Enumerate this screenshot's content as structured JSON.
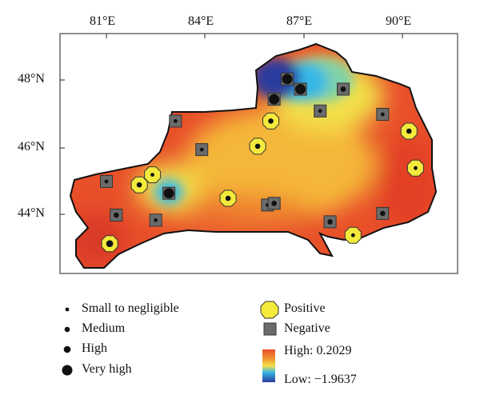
{
  "axes": {
    "longitude_labels": [
      "81°E",
      "84°E",
      "87°E",
      "90°E"
    ],
    "latitude_labels": [
      "48°N",
      "46°N",
      "44°N"
    ]
  },
  "legend": {
    "magnitude": [
      "Small to negligible",
      "Medium",
      "High",
      "Very high"
    ],
    "sign": [
      "Positive",
      "Negative"
    ],
    "scale_high": "High: 0.2029",
    "scale_low": "Low: −1.9637"
  },
  "colors": {
    "high": "#e8502a",
    "mid": "#f3e04a",
    "low_cyan": "#37b8e6",
    "lowest": "#2a3a9e",
    "positive_marker": "#f4ea3c",
    "negative_marker": "#6b6b6b"
  },
  "stations": [
    {
      "lon": 81.1,
      "lat": 43.15,
      "sign": "positive",
      "magnitude": "high"
    },
    {
      "lon": 81.0,
      "lat": 45.0,
      "sign": "negative",
      "magnitude": "small"
    },
    {
      "lon": 81.3,
      "lat": 44.0,
      "sign": "negative",
      "magnitude": "medium"
    },
    {
      "lon": 82.0,
      "lat": 44.9,
      "sign": "positive",
      "magnitude": "medium"
    },
    {
      "lon": 82.4,
      "lat": 45.2,
      "sign": "positive",
      "magnitude": "small"
    },
    {
      "lon": 82.5,
      "lat": 43.85,
      "sign": "negative",
      "magnitude": "small"
    },
    {
      "lon": 82.9,
      "lat": 44.65,
      "sign": "negative",
      "magnitude": "very_high"
    },
    {
      "lon": 83.1,
      "lat": 46.8,
      "sign": "negative",
      "magnitude": "small"
    },
    {
      "lon": 83.9,
      "lat": 45.95,
      "sign": "negative",
      "magnitude": "small"
    },
    {
      "lon": 84.7,
      "lat": 44.5,
      "sign": "positive",
      "magnitude": "medium"
    },
    {
      "lon": 85.6,
      "lat": 46.05,
      "sign": "positive",
      "magnitude": "medium"
    },
    {
      "lon": 85.9,
      "lat": 44.3,
      "sign": "negative",
      "magnitude": "small"
    },
    {
      "lon": 86.1,
      "lat": 44.35,
      "sign": "negative",
      "magnitude": "medium"
    },
    {
      "lon": 86.0,
      "lat": 46.8,
      "sign": "positive",
      "magnitude": "medium"
    },
    {
      "lon": 86.1,
      "lat": 47.45,
      "sign": "negative",
      "magnitude": "very_high"
    },
    {
      "lon": 86.5,
      "lat": 48.05,
      "sign": "negative",
      "magnitude": "very_high"
    },
    {
      "lon": 86.9,
      "lat": 47.75,
      "sign": "negative",
      "magnitude": "very_high"
    },
    {
      "lon": 87.5,
      "lat": 47.1,
      "sign": "negative",
      "magnitude": "small"
    },
    {
      "lon": 87.8,
      "lat": 43.8,
      "sign": "negative",
      "magnitude": "medium"
    },
    {
      "lon": 88.2,
      "lat": 47.75,
      "sign": "negative",
      "magnitude": "medium"
    },
    {
      "lon": 88.5,
      "lat": 43.4,
      "sign": "positive",
      "magnitude": "small"
    },
    {
      "lon": 89.4,
      "lat": 47.0,
      "sign": "negative",
      "magnitude": "small"
    },
    {
      "lon": 89.4,
      "lat": 44.05,
      "sign": "negative",
      "magnitude": "medium"
    },
    {
      "lon": 90.2,
      "lat": 46.5,
      "sign": "positive",
      "magnitude": "medium"
    },
    {
      "lon": 90.4,
      "lat": 45.4,
      "sign": "positive",
      "magnitude": "small"
    }
  ]
}
